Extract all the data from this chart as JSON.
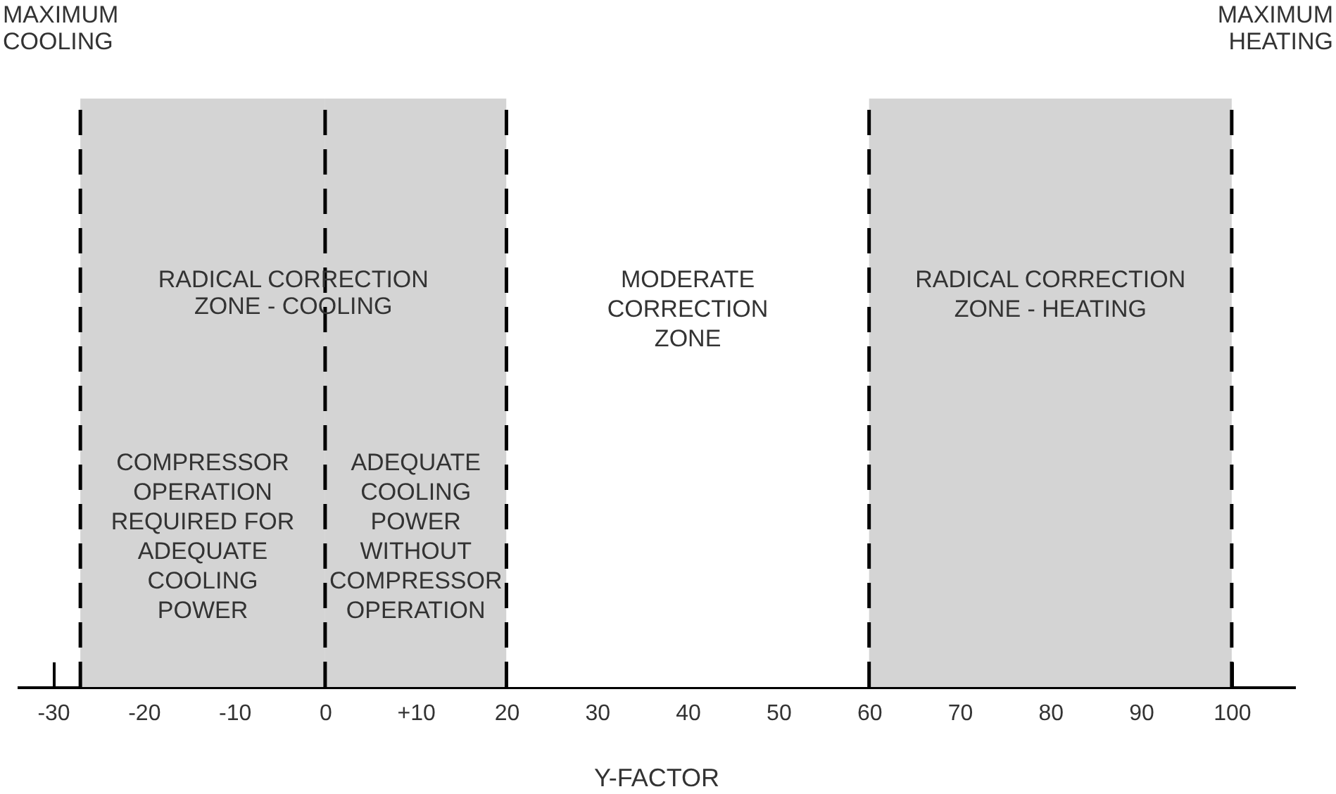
{
  "chart_data": {
    "type": "bar",
    "orientation": "horizontal",
    "xlabel": "Y-FACTOR",
    "xlim": [
      -34,
      107
    ],
    "xticks": [
      -30,
      -20,
      -10,
      0,
      {
        "value": 10,
        "label": "+10"
      },
      20,
      30,
      40,
      50,
      60,
      70,
      80,
      90,
      100
    ],
    "categories": [
      null
    ],
    "series": [
      {
        "name": "COMPRESSOR\nOPERATION\nREQUIRED FOR\nADEQUATE\nCOOLING\nPOWER",
        "color": "#d4d4d4",
        "values": [
          27
        ],
        "base": [
          -27
        ]
      },
      {
        "name": "ADEQUATE\nCOOLING\nPOWER\nWITHOUT\nCOMPRESSOR\nOPERATION",
        "color": "#d4d4d4",
        "values": [
          20
        ],
        "base": [
          0
        ]
      },
      {
        "name": "MODERATE\nCORRECTION\nZONE",
        "color": "#ffffff",
        "values": [
          40
        ],
        "base": [
          20
        ]
      },
      {
        "name": "RADICAL CORRECTION\nZONE - HEATING",
        "color": "#d4d4d4",
        "values": [
          40
        ],
        "base": [
          60
        ]
      }
    ],
    "ref_lines": [
      {
        "axis": "x",
        "value": -27,
        "line_style": "dashed"
      },
      {
        "axis": "x",
        "value": 0,
        "line_style": "dashed"
      },
      {
        "axis": "x",
        "value": 20,
        "line_style": "dashed"
      },
      {
        "axis": "x",
        "value": 60,
        "line_style": "dashed"
      },
      {
        "axis": "x",
        "value": 100,
        "line_style": "dashed"
      }
    ],
    "annotations": [
      "MAXIMUM\nCOOLING",
      "MAXIMUM\nHEATING",
      "RADICAL CORRECTION\nZONE - COOLING"
    ]
  }
}
